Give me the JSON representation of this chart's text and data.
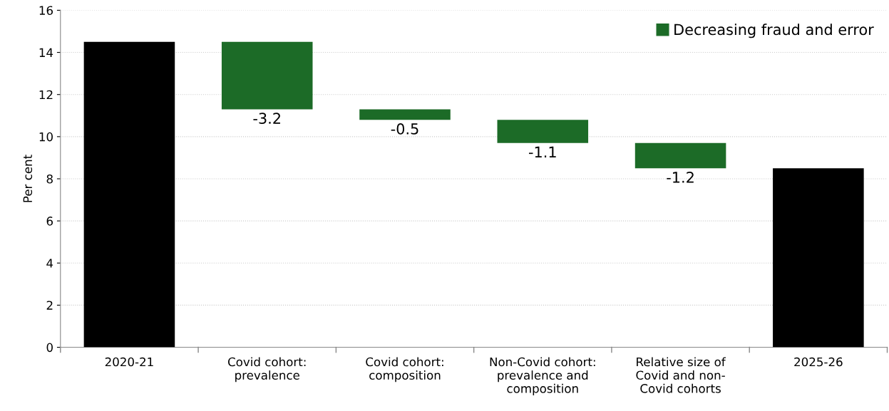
{
  "chart_data": {
    "type": "bar",
    "ylabel": "Per cent",
    "categories": [
      "2020-21",
      "Covid cohort: prevalence",
      "Covid cohort: composition",
      "Non-Covid cohort: prevalence and composition",
      "Relative size of Covid and non-Covid cohorts",
      "2025-26"
    ],
    "series": [
      {
        "color": "#000000",
        "values": [
          14.5,
          null,
          null,
          null,
          null,
          8.5
        ],
        "base": [
          0,
          null,
          null,
          null,
          null,
          0
        ]
      },
      {
        "name": "Decreasing fraud and error",
        "color": "#1c6b27",
        "values": [
          null,
          -3.2,
          -0.5,
          -1.1,
          -1.2,
          null
        ],
        "base": [
          null,
          14.5,
          11.3,
          10.8,
          9.7,
          null
        ],
        "value_labels": [
          null,
          "-3.2",
          "-0.5",
          "-1.1",
          "-1.2",
          null
        ]
      }
    ],
    "ylim": [
      0,
      16
    ],
    "yticks": [
      0,
      2,
      4,
      6,
      8,
      10,
      12,
      14,
      16
    ],
    "grid": "y",
    "legend": "top right"
  }
}
